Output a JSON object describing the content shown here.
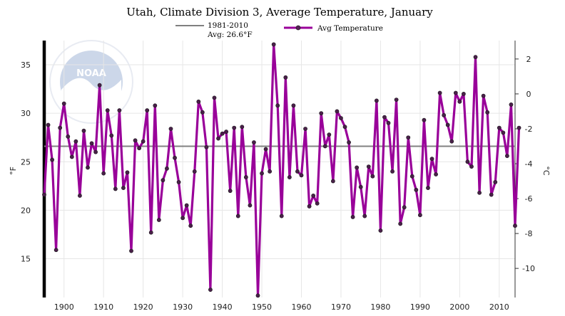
{
  "chart_data": {
    "type": "line",
    "title": "Utah, Climate Division 3, Average Temperature, January",
    "ylabel": "°F",
    "y2label": "°C",
    "xlim": [
      1895,
      2014
    ],
    "ylim": [
      11,
      37.5
    ],
    "x_ticks": [
      1900,
      1910,
      1920,
      1930,
      1940,
      1950,
      1960,
      1970,
      1980,
      1990,
      2000,
      2010
    ],
    "y_ticks_f": [
      15,
      20,
      25,
      30,
      35
    ],
    "y_ticks_c": [
      2,
      0,
      -2,
      -4,
      -6,
      -8,
      -10
    ],
    "grid": true,
    "legend": {
      "baseline_label_line1": "1981-2010",
      "baseline_label_line2": "Avg: 26.6°F",
      "series_label": "Avg Temperature",
      "position": "top-center"
    },
    "baseline": {
      "name": "1981-2010 Avg",
      "value": 26.6
    },
    "series": [
      {
        "name": "Avg Temperature",
        "color": "#990099",
        "start_year": 1895,
        "values": [
          21.6,
          28.8,
          25.2,
          15.9,
          28.5,
          31.0,
          27.6,
          25.5,
          27.1,
          21.5,
          28.2,
          24.4,
          26.9,
          26.0,
          32.9,
          23.8,
          30.3,
          27.7,
          22.2,
          30.3,
          22.3,
          23.9,
          15.8,
          27.2,
          26.4,
          27.1,
          30.3,
          17.7,
          30.8,
          19.0,
          23.1,
          24.3,
          28.4,
          25.4,
          22.9,
          19.2,
          20.5,
          18.4,
          24.0,
          31.2,
          30.1,
          26.5,
          11.8,
          31.6,
          27.4,
          27.9,
          28.1,
          22.0,
          28.5,
          19.4,
          28.6,
          23.4,
          20.5,
          27.0,
          11.2,
          23.8,
          26.3,
          24.0,
          37.1,
          30.8,
          19.4,
          33.7,
          23.4,
          30.8,
          24.0,
          23.6,
          28.4,
          20.4,
          21.5,
          20.7,
          30.0,
          26.6,
          27.8,
          23.0,
          30.2,
          29.5,
          28.6,
          27.0,
          19.3,
          24.4,
          22.4,
          19.4,
          24.5,
          23.5,
          31.3,
          17.9,
          29.6,
          29.0,
          24.0,
          31.4,
          18.6,
          20.3,
          27.5,
          23.5,
          22.1,
          19.5,
          29.3,
          22.3,
          25.3,
          23.7,
          32.1,
          29.8,
          28.8,
          27.1,
          32.1,
          31.2,
          32.0,
          25.0,
          24.5,
          35.8,
          21.8,
          31.8,
          30.1,
          21.6,
          22.9,
          28.5,
          28.0,
          25.6,
          30.9,
          18.4,
          28.5
        ]
      }
    ]
  }
}
